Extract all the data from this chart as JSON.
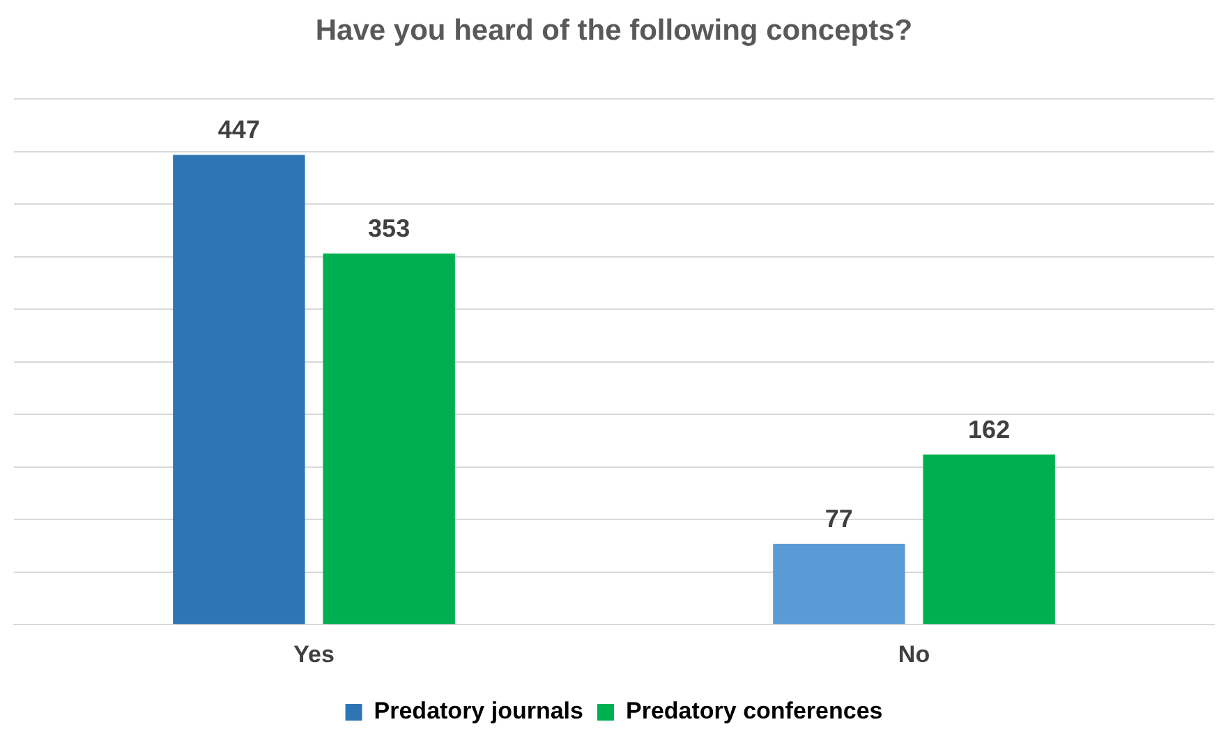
{
  "chart_data": {
    "type": "bar",
    "title": "Have you heard of the following concepts?",
    "categories": [
      "Yes",
      "No"
    ],
    "series": [
      {
        "name": "Predatory journals",
        "color": "#2e75b6",
        "colors": [
          "#2e75b6",
          "#5b9bd5"
        ],
        "values": [
          447,
          77
        ]
      },
      {
        "name": "Predatory conferences",
        "color": "#00b050",
        "values": [
          353,
          162
        ]
      }
    ],
    "ylim": [
      0,
      500
    ],
    "yticks": [
      {
        "value": 0,
        "label": null
      },
      {
        "value": 50,
        "label": null
      },
      {
        "value": 100,
        "label": null
      },
      {
        "value": 150,
        "label": null
      },
      {
        "value": 200,
        "label": null
      },
      {
        "value": 250,
        "label": null
      },
      {
        "value": 300,
        "label": null
      },
      {
        "value": 350,
        "label": null
      },
      {
        "value": 400,
        "label": null
      },
      {
        "value": 450,
        "label": null
      },
      {
        "value": 500,
        "label": null
      }
    ],
    "tick_labels": "x",
    "grid": "y",
    "legend": "bottom",
    "data_labels": true
  }
}
